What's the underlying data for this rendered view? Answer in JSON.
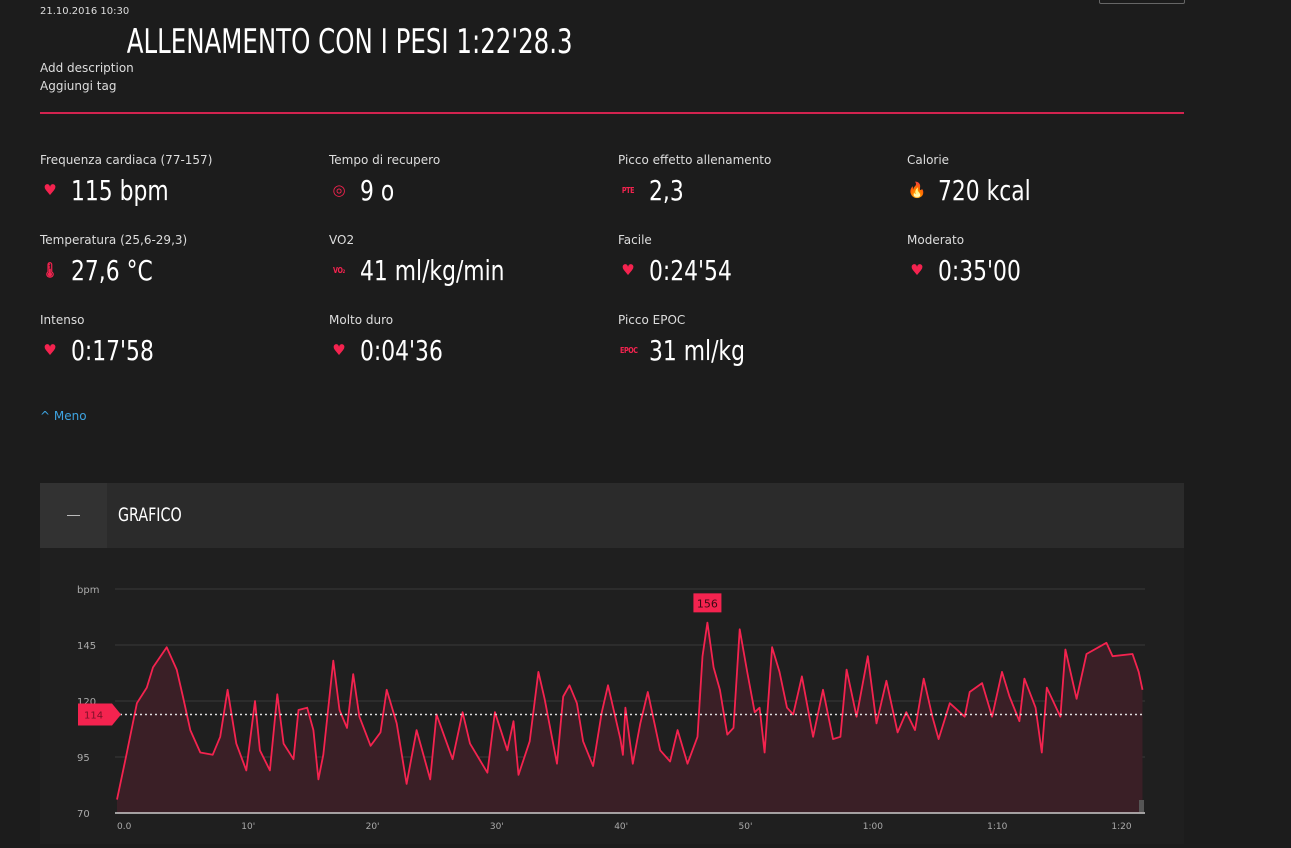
{
  "header": {
    "date": "21.10.2016 10:30",
    "title": "ALLENAMENTO CON I PESI  1:22'28.3",
    "add_description": "Add description",
    "add_tag": "Aggiungi tag"
  },
  "accent": "#f4234f",
  "stats": [
    {
      "label": "Frequenza cardiaca  (77-157)",
      "value": "115 bpm",
      "icon": "heart-icon",
      "glyph": "♥"
    },
    {
      "label": "Tempo di recupero",
      "value": "9 o",
      "icon": "recovery-timer-icon",
      "glyph": "◎"
    },
    {
      "label": "Picco effetto allenamento",
      "value": "2,3",
      "icon": "pte-icon",
      "glyph": "PTE"
    },
    {
      "label": "Calorie",
      "value": "720 kcal",
      "icon": "flame-icon",
      "glyph": "🔥"
    },
    {
      "label": "Temperatura  (25,6-29,3)",
      "value": "27,6 °C",
      "icon": "thermometer-icon",
      "glyph": "🌡"
    },
    {
      "label": "VO2",
      "value": "41 ml/kg/min",
      "icon": "vo2-icon",
      "glyph": "VO₂"
    },
    {
      "label": "Facile",
      "value": "0:24'54",
      "icon": "heart-zone-1-icon",
      "glyph": "♥"
    },
    {
      "label": "Moderato",
      "value": "0:35'00",
      "icon": "heart-zone-2-icon",
      "glyph": "♥"
    },
    {
      "label": "Intenso",
      "value": "0:17'58",
      "icon": "heart-zone-3-icon",
      "glyph": "♥"
    },
    {
      "label": "Molto duro",
      "value": "0:04'36",
      "icon": "heart-zone-4-icon",
      "glyph": "♥"
    },
    {
      "label": "Picco EPOC",
      "value": "31 ml/kg",
      "icon": "epoc-icon",
      "glyph": "EPOC"
    }
  ],
  "less_toggle": {
    "icon": "chevron-up-icon",
    "glyph": "^",
    "label": "Meno"
  },
  "panel": {
    "title": "GRAFICO",
    "collapse_glyph": "—"
  },
  "chart_data": {
    "type": "area",
    "ylabel": "bpm",
    "ylim": [
      70,
      170
    ],
    "yticks": [
      {
        "v": 70,
        "label": "70"
      },
      {
        "v": 95,
        "label": "95"
      },
      {
        "v": 120,
        "label": "120"
      },
      {
        "v": 145,
        "label": "145"
      },
      {
        "v": 170,
        "label": "bpm"
      }
    ],
    "xlim": [
      0,
      82.5
    ],
    "xticks": [
      {
        "v": 0,
        "label": "0.0"
      },
      {
        "v": 10,
        "label": "10'"
      },
      {
        "v": 20,
        "label": "20'"
      },
      {
        "v": 30,
        "label": "30'"
      },
      {
        "v": 40,
        "label": "40'"
      },
      {
        "v": 50,
        "label": "50'"
      },
      {
        "v": 60,
        "label": "1:00"
      },
      {
        "v": 70,
        "label": "1:10"
      },
      {
        "v": 80,
        "label": "1:20"
      }
    ],
    "average": 114,
    "average_label": "114",
    "max": {
      "x": 47.5,
      "y": 156,
      "label": "156"
    },
    "grid": true,
    "line_color": "#f4234f",
    "x": [
      0,
      0.8,
      1.6,
      2.4,
      2.9,
      4.0,
      4.8,
      5.3,
      5.9,
      6.7,
      7.7,
      8.3,
      8.9,
      9.6,
      10.4,
      11.1,
      11.5,
      12.3,
      12.9,
      13.4,
      14.2,
      14.6,
      15.3,
      15.8,
      16.2,
      16.6,
      17.4,
      17.9,
      18.5,
      19.0,
      19.5,
      20.4,
      21.2,
      21.7,
      22.5,
      23.3,
      24.1,
      25.2,
      25.7,
      27.0,
      27.8,
      28.4,
      29.8,
      30.4,
      31.4,
      31.9,
      32.3,
      33.2,
      33.9,
      34.4,
      35.4,
      35.9,
      36.4,
      37.0,
      37.5,
      38.3,
      39.0,
      39.5,
      40.5,
      40.7,
      40.9,
      41.5,
      42.1,
      42.7,
      43.7,
      44.5,
      45.1,
      45.9,
      46.7,
      47.1,
      47.5,
      48.0,
      48.5,
      49.1,
      49.6,
      50.1,
      50.7,
      51.3,
      51.7,
      52.1,
      52.7,
      53.3,
      53.9,
      54.4,
      55.1,
      56.0,
      56.8,
      57.6,
      58.2,
      58.7,
      59.5,
      60.4,
      61.1,
      61.9,
      62.8,
      63.5,
      64.2,
      64.9,
      65.6,
      66.1,
      67.0,
      68.2,
      68.6,
      69.6,
      70.4,
      71.2,
      71.8,
      72.6,
      73.0,
      73.9,
      74.4,
      74.8,
      75.9,
      76.3,
      77.2,
      78.0,
      79.6,
      80.1,
      81.7,
      82.2,
      82.5
    ],
    "y": [
      76,
      97,
      119,
      126,
      135,
      144,
      134,
      122,
      107,
      97,
      96,
      104,
      125,
      101,
      89,
      120,
      98,
      89,
      123,
      101,
      94,
      116,
      117,
      107,
      85,
      96,
      138,
      116,
      108,
      132,
      113,
      100,
      106,
      125,
      110,
      83,
      107,
      85,
      114,
      94,
      115,
      101,
      88,
      115,
      98,
      111,
      87,
      102,
      133,
      121,
      92,
      122,
      127,
      119,
      102,
      91,
      115,
      127,
      103,
      96,
      117,
      92,
      110,
      124,
      98,
      93,
      107,
      92,
      104,
      140,
      155,
      135,
      125,
      105,
      108,
      152,
      133,
      115,
      117,
      97,
      144,
      133,
      117,
      114,
      131,
      104,
      125,
      103,
      104,
      134,
      113,
      140,
      110,
      129,
      106,
      115,
      107,
      130,
      113,
      103,
      119,
      113,
      124,
      128,
      113,
      133,
      122,
      111,
      130,
      117,
      97,
      126,
      113,
      143,
      121,
      141,
      146,
      140,
      141,
      133,
      125
    ]
  }
}
